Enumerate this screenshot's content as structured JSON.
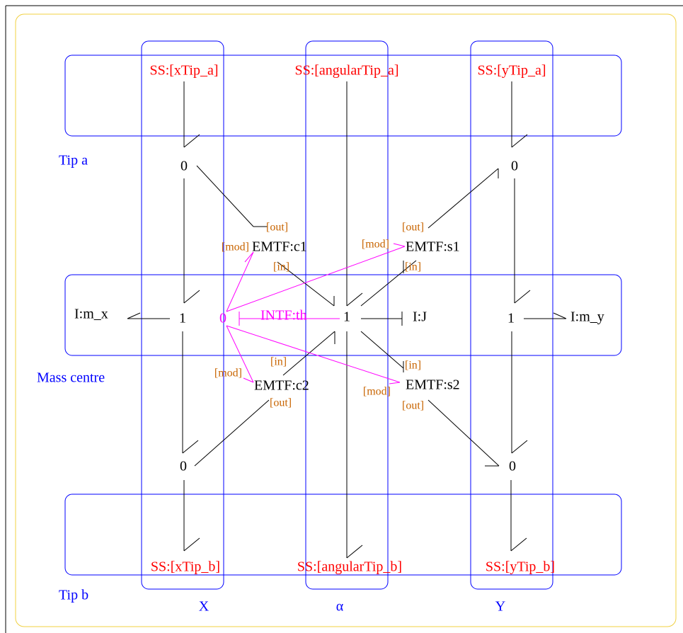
{
  "tip_a": {
    "title": "Tip a",
    "ss_x": "SS:[xTip_a]",
    "ss_angular": "SS:[angularTip_a]",
    "ss_y": "SS:[yTip_a]",
    "junction_x": "0",
    "junction_y": "0"
  },
  "mass_centre": {
    "title": "Mass centre",
    "inertia_x": "I:m_x",
    "junction_x": "1",
    "junction_mod": "0",
    "intf": "INTF:th",
    "junction_angular": "1",
    "inertia_j": "I:J",
    "junction_y": "1",
    "inertia_y": "I:m_y"
  },
  "tip_b": {
    "title": "Tip b",
    "ss_x": "SS:[xTip_b]",
    "ss_angular": "SS:[angularTip_b]",
    "ss_y": "SS:[yTip_b]",
    "junction_x": "0",
    "junction_y": "0"
  },
  "transformers": {
    "c1": {
      "label": "EMTF:c1",
      "in": "[in]",
      "out": "[out]",
      "mod": "[mod]"
    },
    "s1": {
      "label": "EMTF:s1",
      "in": "[in]",
      "out": "[out]",
      "mod": "[mod]"
    },
    "c2": {
      "label": "EMTF:c2",
      "in": "[in]",
      "out": "[out]",
      "mod": "[mod]"
    },
    "s2": {
      "label": "EMTF:s2",
      "in": "[in]",
      "out": "[out]",
      "mod": "[mod]"
    }
  },
  "columns": [
    "X",
    "α",
    "Y"
  ]
}
